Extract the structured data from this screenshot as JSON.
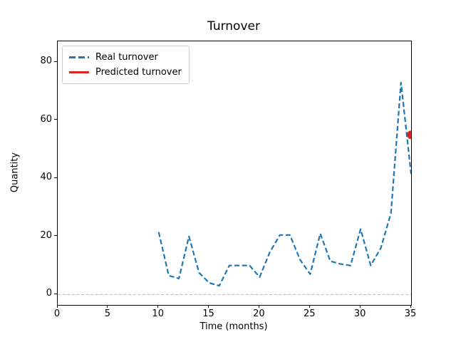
{
  "window": {
    "background": "#ffffff"
  },
  "chart_data": {
    "type": "line",
    "title": "Turnover",
    "xlabel": "Time (months)",
    "ylabel": "Quantity",
    "xlim": [
      0,
      35
    ],
    "ylim": [
      -3.6,
      87.2
    ],
    "x_ticks": [
      0,
      5,
      10,
      15,
      20,
      25,
      30,
      35
    ],
    "y_ticks": [
      0,
      20,
      40,
      60,
      80
    ],
    "grid": "off",
    "zero_line": {
      "y": 0,
      "color": "#b0b0b0",
      "style": "dashed"
    },
    "legend": {
      "position": "upper left",
      "entries": [
        "Real turnover",
        "Predicted turnover"
      ]
    },
    "series": [
      {
        "name": "Real turnover",
        "color": "#1f77b4",
        "style": "dashed",
        "marker": "none",
        "x": [
          10,
          11,
          12,
          13,
          14,
          15,
          16,
          17,
          18,
          19,
          20,
          21,
          22,
          23,
          24,
          25,
          26,
          27,
          28,
          29,
          30,
          31,
          32,
          33,
          34,
          35
        ],
        "y": [
          21.5,
          6.5,
          5.5,
          20,
          7.5,
          4,
          3,
          10,
          10,
          10,
          6,
          14.5,
          20.5,
          20.5,
          12,
          7,
          21,
          11.5,
          10.5,
          10,
          22.5,
          10,
          16,
          28,
          73,
          41.5
        ]
      },
      {
        "name": "Predicted turnover",
        "color": "#d62728",
        "style": "solid",
        "marker": "circle",
        "x": [
          35
        ],
        "y": [
          55
        ]
      }
    ]
  }
}
